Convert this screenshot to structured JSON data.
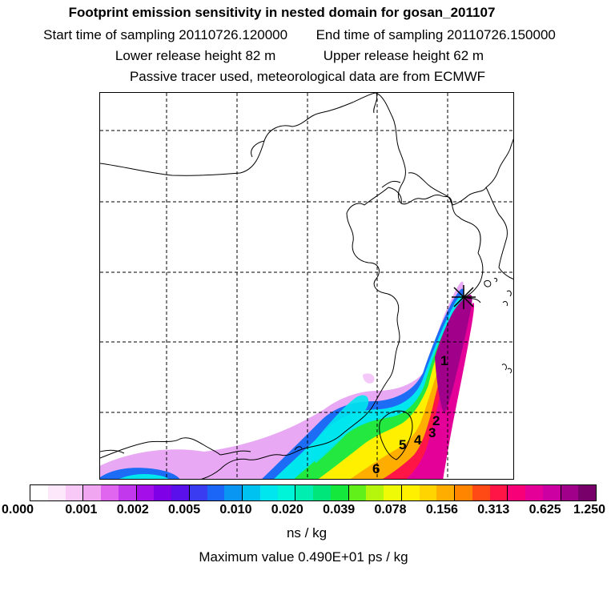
{
  "header": {
    "title": "Footprint emission sensitivity in nested domain for gosan_201107",
    "start_label": "Start time of sampling 20110726.120000",
    "end_label": "End time of sampling 20110726.150000",
    "lower_label": "Lower release height   82 m",
    "upper_label": "Upper release height   62 m",
    "tracer_note": "Passive tracer used, meteorological data are from ECMWF"
  },
  "map": {
    "trajectory_labels": [
      "1",
      "2",
      "3",
      "4",
      "5",
      "6"
    ],
    "release_marker": "release-star"
  },
  "colorbar": {
    "ticks": [
      "0.000",
      "0.001",
      "0.002",
      "0.005",
      "0.010",
      "0.020",
      "0.039",
      "0.078",
      "0.156",
      "0.313",
      "0.625",
      "1.250"
    ],
    "colors": [
      "#ffffff",
      "#fde8fb",
      "#f8c8f6",
      "#f1a6f1",
      "#e066f0",
      "#c238ec",
      "#a40ee8",
      "#7f00e6",
      "#5a10ea",
      "#3a3cf2",
      "#1b66f7",
      "#0996f3",
      "#00c2f0",
      "#00e6ee",
      "#00f4d8",
      "#00eeb0",
      "#00e67a",
      "#14e83c",
      "#62f01a",
      "#b6f60c",
      "#eefa06",
      "#fff000",
      "#ffd400",
      "#ffae00",
      "#ff8400",
      "#ff4a16",
      "#ff1646",
      "#f70078",
      "#e40098",
      "#cc00a2",
      "#a0008a",
      "#78006a"
    ],
    "units": "ns / kg",
    "max_value_label": "Maximum value  0.490E+01 ps / kg"
  }
}
